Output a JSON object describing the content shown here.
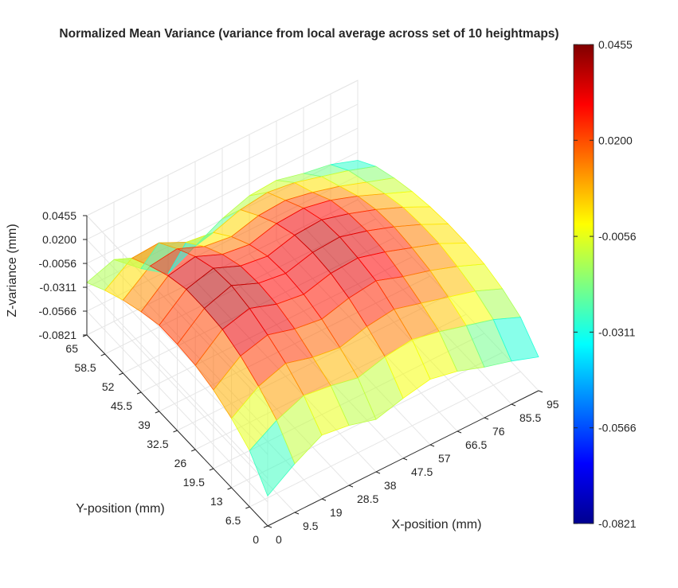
{
  "chart_data": {
    "type": "surface",
    "title": "Normalized Mean Variance (variance from local average across set of 10 heightmaps)",
    "xlabel": "X-position (mm)",
    "ylabel": "Y-position (mm)",
    "zlabel": "Z-variance (mm)",
    "xlim": [
      0,
      95
    ],
    "ylim": [
      0,
      65
    ],
    "zlim": [
      -0.0821,
      0.0455
    ],
    "x_ticks": [
      "0",
      "9.5",
      "19",
      "28.5",
      "38",
      "47.5",
      "57",
      "66.5",
      "76",
      "85.5",
      "95"
    ],
    "y_ticks": [
      "0",
      "6.5",
      "13",
      "19.5",
      "26",
      "32.5",
      "39",
      "45.5",
      "52",
      "58.5",
      "65"
    ],
    "z_ticks": [
      "-0.0821",
      "-0.0566",
      "-0.0311",
      "-0.0056",
      "0.0200",
      "0.0455"
    ],
    "colorbar": {
      "colormap": "jet",
      "range": [
        -0.0821,
        0.0455
      ],
      "ticks": [
        "0.0455",
        "0.0200",
        "-0.0056",
        "-0.0311",
        "-0.0566",
        "-0.0821"
      ]
    },
    "grid": true,
    "surface": {
      "x": [
        0,
        9.5,
        19,
        28.5,
        38,
        47.5,
        57,
        66.5,
        76,
        85.5,
        95
      ],
      "y": [
        0,
        6.5,
        13,
        19.5,
        26,
        32.5,
        39,
        45.5,
        52,
        58.5,
        65
      ],
      "z": [
        [
          -0.05,
          -0.03,
          -0.014,
          -0.018,
          -0.026,
          -0.018,
          -0.012,
          -0.018,
          -0.028,
          -0.036,
          -0.046
        ],
        [
          -0.022,
          -0.004,
          0.008,
          0.004,
          -0.002,
          0.006,
          0.01,
          0.004,
          -0.004,
          -0.012,
          -0.024
        ],
        [
          -0.008,
          0.012,
          0.022,
          0.014,
          0.01,
          0.018,
          0.022,
          0.014,
          0.006,
          -0.002,
          -0.014
        ],
        [
          0.002,
          0.024,
          0.032,
          0.024,
          0.02,
          0.028,
          0.032,
          0.022,
          0.014,
          0.004,
          -0.008
        ],
        [
          0.008,
          0.032,
          0.04,
          0.03,
          0.026,
          0.034,
          0.036,
          0.028,
          0.018,
          0.008,
          -0.006
        ],
        [
          0.01,
          0.034,
          0.044,
          0.032,
          0.028,
          0.036,
          0.038,
          0.03,
          0.02,
          0.008,
          -0.006
        ],
        [
          0.01,
          0.034,
          0.042,
          0.03,
          0.026,
          0.034,
          0.036,
          0.028,
          0.018,
          0.006,
          -0.008
        ],
        [
          0.004,
          0.028,
          0.034,
          0.022,
          0.018,
          0.026,
          0.028,
          0.022,
          0.012,
          0.0,
          -0.012
        ],
        [
          -0.004,
          0.018,
          0.022,
          0.01,
          0.006,
          0.014,
          0.016,
          0.01,
          0.002,
          -0.008,
          -0.018
        ],
        [
          -0.014,
          0.006,
          0.008,
          -0.006,
          -0.01,
          0.0,
          0.004,
          0.0,
          -0.008,
          -0.016,
          -0.026
        ],
        [
          -0.026,
          -0.016,
          -0.04,
          -0.06,
          -0.045,
          -0.03,
          -0.02,
          -0.018,
          -0.025,
          -0.03,
          -0.04
        ]
      ]
    }
  }
}
